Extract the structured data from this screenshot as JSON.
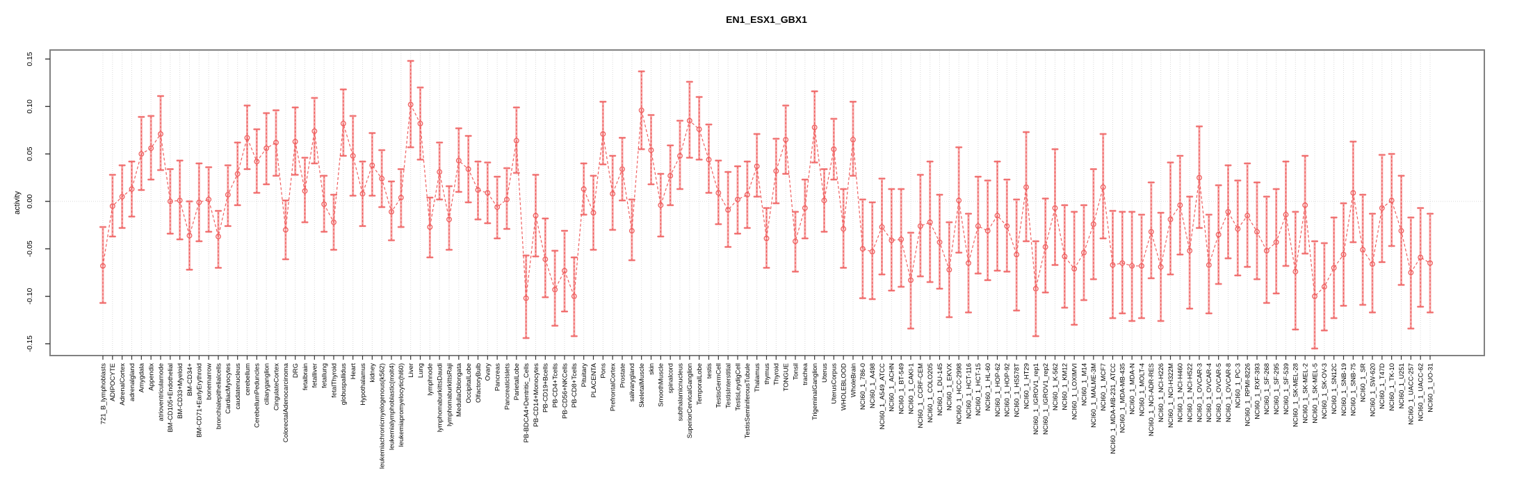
{
  "chart_data": {
    "type": "line",
    "style": "open points with error bars connected by dashed line",
    "title": "EN1_ESX1_GBX1",
    "xlabel": "",
    "ylabel": "activity",
    "ylim": [
      -0.162,
      0.16
    ],
    "yticks": [
      "0.15",
      "0.10",
      "0.05",
      "0.00",
      "-0.05",
      "-0.10",
      "-0.15"
    ],
    "grid": "vertical dotted gridline per category, dotted horizontal line at zero",
    "legend": "none",
    "categories": [
      "721_B_lymphoblasts",
      "ADIPOCYTE",
      "AdrenalCortex",
      "adrenalgland",
      "Amygdala",
      "Appendix",
      "atrioventricularnode",
      "BM-CD105+Endothelial",
      "BM-CD33+Myeloid",
      "BM-CD34+",
      "BM-CD71+EarlyErythroid",
      "bonemarrow",
      "bronchialepithelialcells",
      "CardiacMyocytes",
      "caudatenucleus",
      "cerebellum",
      "CerebellumPeduncles",
      "ciliaryganglion",
      "CingulateCortex",
      "ColorectalAdenocarcinoma",
      "DRG",
      "fetalbrain",
      "fetalliver",
      "fetallung",
      "fetalThyroid",
      "globuspallidus",
      "Heart",
      "Hypothalamus",
      "kidney",
      "leukemiachronicmyelogenous(k562)",
      "leukemialymphoblastic(molt4)",
      "leukemiapromyelocytic(hl60)",
      "Liver",
      "Lung",
      "lymphnode",
      "lymphomaburkittsDaudi",
      "lymphomaburkittsRaji",
      "MedullaOblongata",
      "OccipitalLobe",
      "OlfactoryBulb",
      "Ovary",
      "Pancreas",
      "PancreaticIslets",
      "ParietalLobe",
      "PB-BDCA4+Dentritic_Cells",
      "PB-CD14+Monocytes",
      "PB-CD19+Bcells",
      "PB-CD4+Tcells",
      "PB-CD56+NKCells",
      "PB-CD8+Tcells",
      "Pituitary",
      "PLACENTA",
      "Pons",
      "PrefrontalCortex",
      "Prostate",
      "salivarygland",
      "SkeletalMuscle",
      "skin",
      "SmoothMuscle",
      "spinalcord",
      "subthalamicnucleus",
      "SuperiorCervicalGanglion",
      "TemporalLobe",
      "testis",
      "TestisGermCell",
      "TestisInterstitial",
      "TestisLeydigCell",
      "TestisSeminiferousTubule",
      "Thalamus",
      "thymus",
      "Thyroid",
      "TONGUE",
      "Tonsil",
      "trachea",
      "TrigeminalGanglion",
      "Uterus",
      "UterusCorpus",
      "WHOLEBLOOD",
      "WholeBrain",
      "NCI60_1_786-0",
      "NCI60_1_A498",
      "NCI60_1_A549_ATCC",
      "NCI60_1_ACHN",
      "NCI60_1_BT-549",
      "NCI60_1_CAKI-1",
      "NCI60_1_CCRF-CEM",
      "NCI60_1_COLO205",
      "NCI60_1_DU-145",
      "NCI60_1_EKVX",
      "NCI60_1_HCC-2998",
      "NCI60_1_HCT-116",
      "NCI60_1_HCT-15",
      "NCI60_1_HL-60",
      "NCI60_1_HOP-62",
      "NCI60_1_HOP-92",
      "NCI60_1_HS578T",
      "NCI60_1_HT29",
      "NCI60_1_IGROV1_rep1",
      "NCI60_1_IGROV1_rep2",
      "NCI60_1_K-562",
      "NCI60_1_KM12",
      "NCI60_1_LOXIMVI",
      "NCI60_1_M14",
      "NCI60_1_MALME-3M",
      "NCI60_1_MCF7",
      "NCI60_1_MDA-MB-231_ATCC",
      "NCI60_1_MDA-MB-435",
      "NCI60_1_MDA-N",
      "NCI60_1_MOLT-4",
      "NCI60_1_NCI-ADR-RES",
      "NCI60_1_NCI-H226",
      "NCI60_1_NCI-H322M",
      "NCI60_1_NCI-H460",
      "NCI60_1_NCI-H522",
      "NCI60_1_OVCAR-3",
      "NCI60_1_OVCAR-4",
      "NCI60_1_OVCAR-5",
      "NCI60_1_OVCAR-8",
      "NCI60_1_PC-3",
      "NCI60_1_RPMI-8226",
      "NCI60_1_RXF-393",
      "NCI60_1_SF-268",
      "NCI60_1_SF-295",
      "NCI60_1_SF-539",
      "NCI60_1_SK-MEL-28",
      "NCI60_1_SK-MEL-2",
      "NCI60_1_SK-MEL-5",
      "NCI60_1_SK-OV-3",
      "NCI60_1_SN12C",
      "NCI60_1_SNB-19",
      "NCI60_1_SNB-75",
      "NCI60_1_SR",
      "NCI60_1_SW-620",
      "NCI60_1_T47D",
      "NCI60_1_TK-10",
      "NCI60_1_U251",
      "NCI60_1_UACC-257",
      "NCI60_1_UACC-62",
      "NCI60_1_UO-31"
    ],
    "values": [
      -0.068,
      -0.005,
      0.005,
      0.013,
      0.05,
      0.056,
      0.071,
      0.0,
      0.001,
      -0.036,
      -0.001,
      0.002,
      -0.037,
      0.007,
      0.029,
      0.067,
      0.042,
      0.056,
      0.062,
      -0.03,
      0.063,
      0.011,
      0.074,
      -0.003,
      -0.022,
      0.082,
      0.048,
      0.008,
      0.038,
      0.024,
      -0.011,
      0.004,
      0.102,
      0.082,
      -0.027,
      0.031,
      -0.019,
      0.043,
      0.034,
      0.012,
      0.009,
      -0.006,
      0.002,
      0.064,
      -0.102,
      -0.015,
      -0.061,
      -0.093,
      -0.073,
      -0.1,
      0.013,
      -0.012,
      0.071,
      0.008,
      0.034,
      -0.031,
      0.096,
      0.054,
      -0.004,
      0.027,
      0.048,
      0.085,
      0.076,
      0.044,
      0.009,
      -0.009,
      0.002,
      0.007,
      0.037,
      -0.039,
      0.032,
      0.065,
      -0.042,
      -0.007,
      0.078,
      0.001,
      0.055,
      -0.029,
      0.065,
      -0.05,
      -0.053,
      -0.027,
      -0.041,
      -0.04,
      -0.083,
      -0.026,
      -0.022,
      -0.043,
      -0.072,
      0.001,
      -0.065,
      -0.026,
      -0.031,
      -0.015,
      -0.026,
      -0.056,
      0.015,
      -0.092,
      -0.048,
      -0.007,
      -0.058,
      -0.071,
      -0.054,
      -0.024,
      0.015,
      -0.067,
      -0.065,
      -0.068,
      -0.068,
      -0.032,
      -0.069,
      -0.019,
      -0.004,
      -0.052,
      0.025,
      -0.067,
      -0.035,
      -0.011,
      -0.029,
      -0.015,
      -0.032,
      -0.052,
      -0.043,
      -0.014,
      -0.074,
      -0.004,
      -0.1,
      -0.09,
      -0.07,
      -0.056,
      0.009,
      -0.051,
      -0.066,
      -0.007,
      0.001,
      -0.031,
      -0.075,
      -0.059,
      -0.065
    ],
    "err_low": [
      -0.107,
      -0.037,
      -0.028,
      -0.016,
      0.012,
      0.023,
      0.033,
      -0.034,
      -0.04,
      -0.072,
      -0.042,
      -0.032,
      -0.07,
      -0.026,
      -0.004,
      0.034,
      0.009,
      0.018,
      0.027,
      -0.061,
      0.028,
      -0.022,
      0.04,
      -0.032,
      -0.051,
      0.048,
      0.006,
      -0.026,
      0.006,
      -0.006,
      -0.041,
      -0.027,
      0.057,
      0.044,
      -0.059,
      0.002,
      -0.051,
      0.01,
      -0.001,
      -0.019,
      -0.023,
      -0.039,
      -0.029,
      0.03,
      -0.144,
      -0.058,
      -0.101,
      -0.131,
      -0.116,
      -0.142,
      -0.014,
      -0.051,
      0.039,
      -0.03,
      0.001,
      -0.062,
      0.055,
      0.018,
      -0.037,
      -0.004,
      0.013,
      0.046,
      0.044,
      0.009,
      -0.024,
      -0.048,
      -0.034,
      -0.028,
      0.005,
      -0.07,
      -0.002,
      0.029,
      -0.074,
      -0.039,
      0.041,
      -0.032,
      0.023,
      -0.07,
      0.027,
      -0.102,
      -0.103,
      -0.077,
      -0.094,
      -0.09,
      -0.134,
      -0.079,
      -0.085,
      -0.092,
      -0.122,
      -0.054,
      -0.117,
      -0.076,
      -0.083,
      -0.073,
      -0.074,
      -0.115,
      -0.042,
      -0.142,
      -0.096,
      -0.067,
      -0.112,
      -0.13,
      -0.104,
      -0.082,
      -0.039,
      -0.123,
      -0.118,
      -0.126,
      -0.123,
      -0.081,
      -0.126,
      -0.077,
      -0.056,
      -0.113,
      -0.028,
      -0.118,
      -0.087,
      -0.06,
      -0.078,
      -0.069,
      -0.082,
      -0.107,
      -0.097,
      -0.068,
      -0.135,
      -0.055,
      -0.155,
      -0.136,
      -0.123,
      -0.11,
      -0.043,
      -0.109,
      -0.117,
      -0.064,
      -0.047,
      -0.088,
      -0.134,
      -0.111,
      -0.117
    ],
    "err_high": [
      -0.027,
      0.028,
      0.038,
      0.042,
      0.089,
      0.09,
      0.111,
      0.034,
      0.043,
      0.0,
      0.04,
      0.036,
      -0.01,
      0.038,
      0.062,
      0.101,
      0.076,
      0.093,
      0.096,
      0.001,
      0.099,
      0.046,
      0.109,
      0.027,
      0.007,
      0.118,
      0.09,
      0.042,
      0.072,
      0.054,
      0.021,
      0.034,
      0.148,
      0.12,
      0.004,
      0.062,
      0.016,
      0.077,
      0.069,
      0.042,
      0.041,
      0.026,
      0.035,
      0.099,
      -0.057,
      0.028,
      -0.018,
      -0.052,
      -0.031,
      -0.059,
      0.04,
      0.027,
      0.105,
      0.048,
      0.067,
      0.002,
      0.137,
      0.091,
      0.029,
      0.059,
      0.085,
      0.126,
      0.11,
      0.081,
      0.043,
      0.031,
      0.037,
      0.042,
      0.071,
      -0.007,
      0.066,
      0.101,
      -0.011,
      0.023,
      0.116,
      0.034,
      0.087,
      0.013,
      0.105,
      0.002,
      -0.001,
      0.024,
      0.013,
      0.013,
      -0.033,
      0.028,
      0.042,
      0.007,
      -0.022,
      0.057,
      -0.013,
      0.026,
      0.022,
      0.042,
      0.023,
      0.002,
      0.073,
      -0.042,
      0.003,
      0.055,
      -0.004,
      -0.011,
      -0.004,
      0.034,
      0.071,
      -0.01,
      -0.011,
      -0.011,
      -0.014,
      0.02,
      -0.012,
      0.041,
      0.048,
      0.005,
      0.079,
      -0.014,
      0.017,
      0.038,
      0.022,
      0.04,
      0.02,
      0.005,
      0.013,
      0.042,
      -0.011,
      0.048,
      -0.042,
      -0.044,
      -0.017,
      -0.002,
      0.063,
      0.007,
      -0.013,
      0.049,
      0.05,
      0.027,
      -0.017,
      -0.007,
      -0.013
    ]
  },
  "colors": {
    "point": "#ef5e5e",
    "bar_light": "#f6a9a9",
    "grid": "#d8d8d8",
    "box": "#808080",
    "tick": "#333333",
    "background": "#ffffff"
  }
}
